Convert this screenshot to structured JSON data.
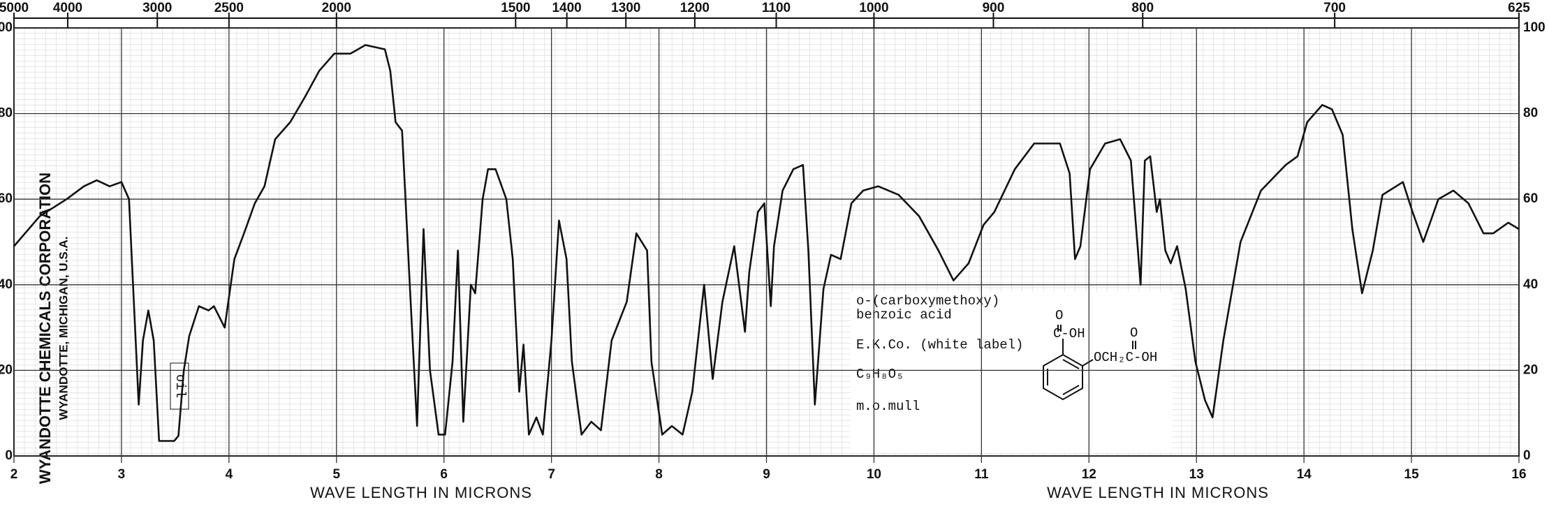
{
  "chart_data": {
    "type": "line",
    "x_label": "WAVE LENGTH IN MICRONS",
    "x_label_2": "WAVE LENGTH IN MICRONS",
    "xlim": [
      2,
      16
    ],
    "xticks": [
      2,
      3,
      4,
      5,
      6,
      7,
      8,
      9,
      10,
      11,
      12,
      13,
      14,
      15,
      16
    ],
    "x2ticks": [
      5000,
      4000,
      3000,
      2500,
      2000,
      1500,
      1400,
      1300,
      1200,
      1100,
      1000,
      900,
      800,
      700,
      625
    ],
    "ylim": [
      0,
      100
    ],
    "yticks": [
      0,
      20,
      40,
      60,
      80,
      100
    ],
    "grid": true,
    "color": "#111111",
    "series": [
      {
        "x": [
          2.0,
          2.24,
          2.49,
          2.65,
          2.77,
          2.89,
          3.0,
          3.07,
          3.16,
          3.2,
          3.25,
          3.3,
          3.35,
          3.49,
          3.53,
          3.58,
          3.63,
          3.72,
          3.81,
          3.86,
          3.96,
          4.05,
          4.14,
          4.24,
          4.33,
          4.43,
          4.57,
          4.71,
          4.84,
          4.98,
          5.13,
          5.27,
          5.45,
          5.5,
          5.55,
          5.61,
          5.69,
          5.75,
          5.81,
          5.87,
          5.95,
          6.01,
          6.08,
          6.13,
          6.18,
          6.25,
          6.29,
          6.36,
          6.41,
          6.48,
          6.58,
          6.64,
          6.7,
          6.74,
          6.79,
          6.86,
          6.92,
          7.0,
          7.07,
          7.14,
          7.19,
          7.28,
          7.37,
          7.46,
          7.56,
          7.7,
          7.79,
          7.89,
          7.93,
          8.03,
          8.12,
          8.22,
          8.31,
          8.42,
          8.5,
          8.59,
          8.7,
          8.8,
          8.84,
          8.92,
          8.98,
          9.04,
          9.07,
          9.15,
          9.25,
          9.34,
          9.39,
          9.45,
          9.53,
          9.6,
          9.69,
          9.79,
          9.9,
          10.04,
          10.23,
          10.42,
          10.6,
          10.74,
          10.88,
          11.02,
          11.12,
          11.31,
          11.49,
          11.73,
          11.82,
          11.87,
          11.92,
          12.01,
          12.15,
          12.29,
          12.39,
          12.48,
          12.52,
          12.57,
          12.63,
          12.66,
          12.71,
          12.76,
          12.82,
          12.9,
          12.99,
          13.08,
          13.15,
          13.25,
          13.41,
          13.6,
          13.83,
          13.94,
          14.03,
          14.17,
          14.26,
          14.36,
          14.45,
          14.54,
          14.64,
          14.73,
          14.92,
          15.01,
          15.11,
          15.25,
          15.39,
          15.53,
          15.67,
          15.76,
          15.9,
          16.0
        ],
        "values": [
          49,
          56,
          60,
          63,
          64.4,
          63,
          64,
          60,
          12,
          27,
          34,
          27,
          3.5,
          3.5,
          4.7,
          20,
          28,
          35,
          34,
          35,
          30,
          46,
          52,
          59,
          63,
          74,
          78,
          84,
          90,
          94,
          94,
          96,
          95,
          90,
          78,
          76,
          36,
          7,
          53,
          20,
          5,
          5,
          22,
          48,
          8,
          40,
          38,
          60,
          67,
          67,
          60,
          46,
          15,
          26,
          5,
          9,
          5,
          27,
          55,
          46,
          22,
          5,
          8,
          6,
          27,
          36,
          52,
          48,
          22,
          5,
          7,
          5,
          15,
          40,
          18,
          36,
          49,
          29,
          43,
          57,
          59,
          35,
          49,
          62,
          67,
          68,
          48,
          12,
          39,
          47,
          46,
          59,
          62,
          63,
          61,
          56,
          48,
          41,
          45,
          54,
          57,
          67,
          73,
          73,
          66,
          46,
          49,
          67,
          73,
          74,
          69,
          40,
          69,
          70,
          57,
          60,
          48,
          45,
          49,
          39,
          22,
          13,
          9,
          27,
          50,
          62,
          68,
          70,
          78,
          82,
          81,
          75,
          53,
          38,
          48,
          61,
          64,
          57,
          50,
          60,
          62,
          59,
          52,
          52,
          54.5,
          53
        ]
      }
    ],
    "annotations": {
      "solvent": "oil",
      "corporation": "WYANDOTTE CHEMICALS CORPORATION",
      "location": "WYANDOTTE, MICHIGAN, U.S.A.",
      "compound_line_1": "o-(carboxymethoxy)",
      "compound_line_2": "benzoic acid",
      "source": "E.K.Co. (white label)",
      "formula": "C₉H₈O₅",
      "phase": "m.o.mull"
    },
    "structure": {
      "o1": "O",
      "group1": "C-OH",
      "o2": "O",
      "group2": "OCH₂C-OH"
    }
  }
}
